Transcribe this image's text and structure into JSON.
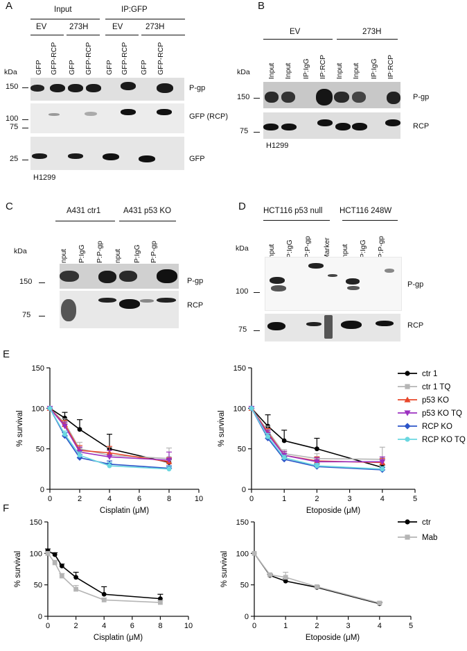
{
  "panels": {
    "A": "A",
    "B": "B",
    "C": "C",
    "D": "D",
    "E": "E",
    "F": "F"
  },
  "A": {
    "groups": [
      "Input",
      "IP:GFP"
    ],
    "subgroups": [
      "EV",
      "273H",
      "EV",
      "273H"
    ],
    "lanes": [
      "GFP",
      "GFP-RCP",
      "GFP",
      "GFP-RCP",
      "GFP",
      "GFP-RCP",
      "GFP",
      "GFP-RCP"
    ],
    "kda": "kDa",
    "markers": [
      "150",
      "100",
      "75",
      "25"
    ],
    "blots": [
      "P-gp",
      "GFP (RCP)",
      "GFP"
    ],
    "cell_line": "H1299"
  },
  "B": {
    "groups": [
      "EV",
      "273H"
    ],
    "lanes": [
      "Input",
      "Input",
      "IP:IgG",
      "IP:RCP",
      "Input",
      "Input",
      "IP:IgG",
      "IP:RCP"
    ],
    "kda": "kDa",
    "markers": [
      "150",
      "75"
    ],
    "blots": [
      "P-gp",
      "RCP"
    ],
    "cell_line": "H1299"
  },
  "C": {
    "groups": [
      "A431 ctr1",
      "A431 p53 KO"
    ],
    "lanes": [
      "Input",
      "IP:IgG",
      "IP:P-gp",
      "Input",
      "IP:IgG",
      "IP:P-gp"
    ],
    "kda": "kDa",
    "markers": [
      "150",
      "75"
    ],
    "blots": [
      "P-gp",
      "RCP"
    ]
  },
  "D": {
    "groups": [
      "HCT116 p53 null",
      "HCT116 248W"
    ],
    "lanes": [
      "Input",
      "IP:IgG",
      "IP:P-gp",
      "Marker",
      "Input",
      "IP:IgG",
      "IP:P-gp"
    ],
    "kda": "kDa",
    "markers": [
      "100",
      "75"
    ],
    "blots": [
      "P-gp",
      "RCP"
    ]
  },
  "chart_data": [
    {
      "id": "E-left",
      "type": "line",
      "xlabel": "Cisplatin (μM)",
      "ylabel": "% survival",
      "xlim": [
        0,
        10
      ],
      "ylim": [
        0,
        150
      ],
      "xticks": [
        "0",
        "2",
        "4",
        "6",
        "8",
        "10"
      ],
      "yticks": [
        "0",
        "50",
        "100",
        "150"
      ],
      "x": [
        0,
        1,
        2,
        4,
        8
      ],
      "series": [
        {
          "name": "ctr 1",
          "color": "#000000",
          "marker": "circle",
          "values": [
            100,
            88,
            74,
            50,
            33
          ],
          "err": [
            0,
            7,
            12,
            18,
            4
          ]
        },
        {
          "name": "ctr 1 TQ",
          "color": "#b5b5b5",
          "marker": "square",
          "values": [
            100,
            82,
            50,
            42,
            38
          ],
          "err": [
            0,
            5,
            8,
            10,
            13
          ]
        },
        {
          "name": "p53 KO",
          "color": "#e8472a",
          "marker": "triangle-up",
          "values": [
            100,
            80,
            48,
            45,
            34
          ],
          "err": [
            0,
            5,
            6,
            8,
            5
          ]
        },
        {
          "name": "p53 KO TQ",
          "color": "#9b30c0",
          "marker": "triangle-down",
          "values": [
            100,
            78,
            46,
            40,
            36
          ],
          "err": [
            0,
            5,
            6,
            8,
            10
          ]
        },
        {
          "name": "RCP KO",
          "color": "#2c55c8",
          "marker": "diamond",
          "values": [
            100,
            66,
            39,
            31,
            26
          ],
          "err": [
            0,
            4,
            4,
            4,
            3
          ]
        },
        {
          "name": "RCP KO TQ",
          "color": "#6ad7e0",
          "marker": "circle",
          "values": [
            100,
            68,
            42,
            29,
            25
          ],
          "err": [
            0,
            4,
            4,
            4,
            3
          ]
        }
      ]
    },
    {
      "id": "E-right",
      "type": "line",
      "xlabel": "Etoposide (μM)",
      "ylabel": "% survival",
      "xlim": [
        0,
        5
      ],
      "ylim": [
        0,
        150
      ],
      "xticks": [
        "0",
        "1",
        "2",
        "3",
        "4",
        "5"
      ],
      "yticks": [
        "0",
        "50",
        "100",
        "150"
      ],
      "x": [
        0,
        0.5,
        1,
        2,
        4
      ],
      "series": [
        {
          "name": "ctr 1",
          "color": "#000000",
          "marker": "circle",
          "values": [
            100,
            78,
            60,
            50,
            27
          ],
          "err": [
            0,
            14,
            13,
            13,
            3
          ]
        },
        {
          "name": "ctr 1 TQ",
          "color": "#b5b5b5",
          "marker": "square",
          "values": [
            100,
            72,
            44,
            38,
            37
          ],
          "err": [
            0,
            6,
            5,
            6,
            15
          ]
        },
        {
          "name": "p53 KO",
          "color": "#e8472a",
          "marker": "triangle-up",
          "values": [
            100,
            70,
            42,
            35,
            33
          ],
          "err": [
            0,
            5,
            5,
            5,
            5
          ]
        },
        {
          "name": "p53 KO TQ",
          "color": "#9b30c0",
          "marker": "triangle-down",
          "values": [
            100,
            68,
            42,
            34,
            34
          ],
          "err": [
            0,
            5,
            5,
            5,
            6
          ]
        },
        {
          "name": "RCP KO",
          "color": "#2c55c8",
          "marker": "diamond",
          "values": [
            100,
            63,
            37,
            28,
            24
          ],
          "err": [
            0,
            4,
            3,
            3,
            3
          ]
        },
        {
          "name": "RCP KO TQ",
          "color": "#6ad7e0",
          "marker": "circle",
          "values": [
            100,
            65,
            39,
            29,
            25
          ],
          "err": [
            0,
            4,
            3,
            3,
            3
          ]
        }
      ]
    },
    {
      "id": "F-left",
      "type": "line",
      "xlabel": "Cisplatin (μM)",
      "ylabel": "% survival",
      "xlim": [
        0,
        10
      ],
      "ylim": [
        0,
        150
      ],
      "xticks": [
        "0",
        "2",
        "4",
        "6",
        "8",
        "10"
      ],
      "yticks": [
        "0",
        "50",
        "100",
        "150"
      ],
      "x": [
        0,
        0.5,
        1,
        2,
        4,
        8
      ],
      "series": [
        {
          "name": "ctr",
          "color": "#000000",
          "marker": "circle",
          "values": [
            104,
            98,
            80,
            62,
            35,
            28
          ],
          "err": [
            3,
            3,
            3,
            8,
            12,
            7
          ]
        },
        {
          "name": "Mab",
          "color": "#b5b5b5",
          "marker": "square",
          "values": [
            100,
            85,
            64,
            43,
            26,
            22
          ],
          "err": [
            3,
            4,
            4,
            6,
            3,
            3
          ]
        }
      ]
    },
    {
      "id": "F-right",
      "type": "line",
      "xlabel": "Etoposide (μM)",
      "ylabel": "% survival",
      "xlim": [
        0,
        5
      ],
      "ylim": [
        0,
        150
      ],
      "xticks": [
        "0",
        "1",
        "2",
        "3",
        "4",
        "5"
      ],
      "yticks": [
        "0",
        "50",
        "100",
        "150"
      ],
      "x": [
        0,
        0.5,
        1,
        2,
        4
      ],
      "series": [
        {
          "name": "ctr",
          "color": "#000000",
          "marker": "circle",
          "values": [
            100,
            65,
            56,
            46,
            20
          ],
          "err": [
            0,
            2,
            4,
            2,
            2
          ]
        },
        {
          "name": "Mab",
          "color": "#b5b5b5",
          "marker": "square",
          "values": [
            100,
            66,
            62,
            47,
            21
          ],
          "err": [
            0,
            2,
            8,
            2,
            2
          ]
        }
      ]
    }
  ]
}
